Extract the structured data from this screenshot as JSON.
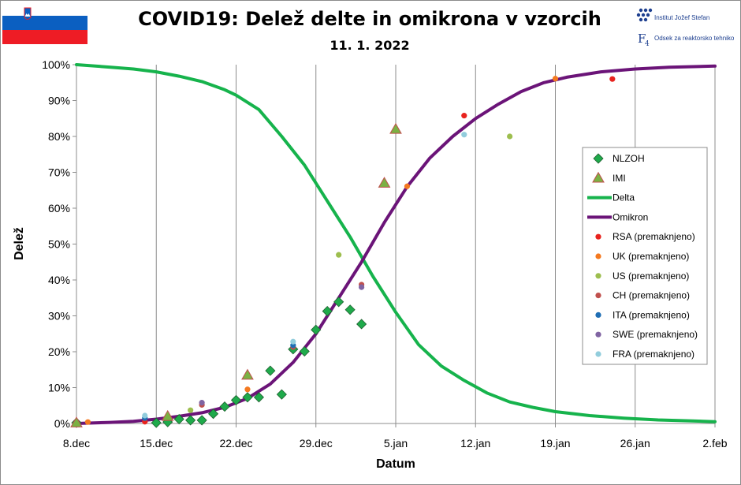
{
  "header": {
    "title": "COVID19: Delež delte in omikrona v vzorcih",
    "subtitle": "11. 1. 2022"
  },
  "logos": {
    "ijs_text": "Institut Jožef Stefan",
    "f4_text": "Odsek za reaktorsko tehniko",
    "flag_colors": [
      "#ffffff",
      "#0b5fc1",
      "#ee1c25"
    ]
  },
  "chart_data": {
    "type": "line",
    "xlabel": "Datum",
    "ylabel": "Delež",
    "x_ticks": [
      "8.dec",
      "15.dec",
      "22.dec",
      "29.dec",
      "5.jan",
      "12.jan",
      "19.jan",
      "26.jan",
      "2.feb"
    ],
    "x_tick_days": [
      0,
      7,
      14,
      21,
      28,
      35,
      42,
      49,
      56
    ],
    "x_range_days": [
      0,
      56
    ],
    "y_ticks": [
      "0%",
      "10%",
      "20%",
      "30%",
      "40%",
      "50%",
      "60%",
      "70%",
      "80%",
      "90%",
      "100%"
    ],
    "ylim": [
      0,
      1
    ],
    "grid": "vertical",
    "legend_position": "right",
    "series": [
      {
        "name": "NLZOH",
        "kind": "marker",
        "marker": "diamond",
        "color": "#1faa4b",
        "points": [
          [
            0,
            0.002
          ],
          [
            7,
            0.002
          ],
          [
            8,
            0.004
          ],
          [
            9,
            0.012
          ],
          [
            10,
            0.009
          ],
          [
            11,
            0.009
          ],
          [
            12,
            0.027
          ],
          [
            13,
            0.047
          ],
          [
            14,
            0.065
          ],
          [
            15,
            0.073
          ],
          [
            16,
            0.073
          ],
          [
            17,
            0.147
          ],
          [
            18,
            0.081
          ],
          [
            19,
            0.207
          ],
          [
            20,
            0.201
          ],
          [
            21,
            0.261
          ],
          [
            22,
            0.313
          ],
          [
            23,
            0.339
          ],
          [
            24,
            0.317
          ],
          [
            25,
            0.277
          ]
        ]
      },
      {
        "name": "IMI",
        "kind": "marker",
        "marker": "triangle",
        "color": "#7bb143",
        "points": [
          [
            0,
            0.002
          ],
          [
            8,
            0.02
          ],
          [
            15,
            0.135
          ],
          [
            27,
            0.67
          ],
          [
            28,
            0.82
          ]
        ]
      },
      {
        "name": "Delta",
        "kind": "line",
        "color": "#16b34c",
        "points": [
          [
            0,
            1.0
          ],
          [
            3,
            0.993
          ],
          [
            5,
            0.988
          ],
          [
            7,
            0.98
          ],
          [
            9,
            0.968
          ],
          [
            11,
            0.953
          ],
          [
            13,
            0.93
          ],
          [
            14,
            0.915
          ],
          [
            16,
            0.875
          ],
          [
            18,
            0.8
          ],
          [
            20,
            0.72
          ],
          [
            22,
            0.62
          ],
          [
            24,
            0.52
          ],
          [
            26,
            0.41
          ],
          [
            28,
            0.31
          ],
          [
            30,
            0.22
          ],
          [
            32,
            0.16
          ],
          [
            34,
            0.12
          ],
          [
            36,
            0.085
          ],
          [
            38,
            0.06
          ],
          [
            40,
            0.045
          ],
          [
            42,
            0.033
          ],
          [
            45,
            0.022
          ],
          [
            48,
            0.015
          ],
          [
            51,
            0.01
          ],
          [
            54,
            0.007
          ],
          [
            56,
            0.005
          ]
        ]
      },
      {
        "name": "Omikron",
        "kind": "line",
        "color": "#6b1478",
        "points": [
          [
            0,
            0.0
          ],
          [
            3,
            0.003
          ],
          [
            5,
            0.006
          ],
          [
            7,
            0.012
          ],
          [
            9,
            0.02
          ],
          [
            11,
            0.03
          ],
          [
            13,
            0.045
          ],
          [
            15,
            0.07
          ],
          [
            17,
            0.11
          ],
          [
            19,
            0.17
          ],
          [
            21,
            0.25
          ],
          [
            23,
            0.35
          ],
          [
            25,
            0.45
          ],
          [
            27,
            0.56
          ],
          [
            29,
            0.66
          ],
          [
            31,
            0.74
          ],
          [
            33,
            0.8
          ],
          [
            35,
            0.85
          ],
          [
            37,
            0.89
          ],
          [
            39,
            0.925
          ],
          [
            41,
            0.95
          ],
          [
            43,
            0.965
          ],
          [
            46,
            0.98
          ],
          [
            49,
            0.988
          ],
          [
            52,
            0.993
          ],
          [
            56,
            0.996
          ]
        ]
      },
      {
        "name": "RSA (premaknjeno)",
        "kind": "marker",
        "marker": "circle",
        "color": "#e8231e",
        "points": [
          [
            6,
            0.005
          ],
          [
            34,
            0.858
          ],
          [
            47,
            0.96
          ]
        ]
      },
      {
        "name": "UK (premaknjeno)",
        "kind": "marker",
        "marker": "circle",
        "color": "#f47920",
        "points": [
          [
            1,
            0.004
          ],
          [
            15,
            0.095
          ],
          [
            29,
            0.661
          ],
          [
            42,
            0.961
          ]
        ]
      },
      {
        "name": "US (premaknjeno)",
        "kind": "marker",
        "marker": "circle",
        "color": "#9dbe4e",
        "points": [
          [
            10,
            0.037
          ],
          [
            23,
            0.47
          ],
          [
            38,
            0.8
          ]
        ]
      },
      {
        "name": "CH (premaknjeno)",
        "kind": "marker",
        "marker": "circle",
        "color": "#c0504d",
        "points": [
          [
            11,
            0.052
          ],
          [
            19,
            0.213
          ],
          [
            25,
            0.387
          ]
        ]
      },
      {
        "name": "ITA (premaknjeno)",
        "kind": "marker",
        "marker": "circle",
        "color": "#1f6eb4",
        "points": [
          [
            6,
            0.015
          ],
          [
            19,
            0.218
          ]
        ]
      },
      {
        "name": "SWE (premaknjeno)",
        "kind": "marker",
        "marker": "circle",
        "color": "#8064a2",
        "points": [
          [
            11,
            0.058
          ],
          [
            25,
            0.38
          ]
        ]
      },
      {
        "name": "FRA (premaknjeno)",
        "kind": "marker",
        "marker": "circle",
        "color": "#92cddc",
        "points": [
          [
            6,
            0.022
          ],
          [
            19,
            0.228
          ],
          [
            34,
            0.805
          ]
        ]
      }
    ]
  }
}
